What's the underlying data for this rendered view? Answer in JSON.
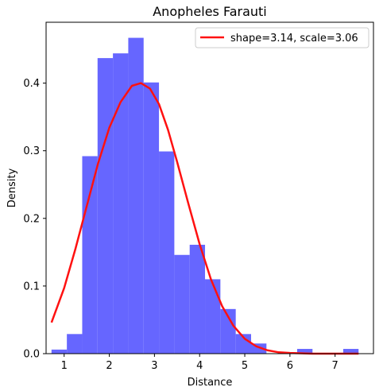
{
  "chart_data": {
    "type": "histogram",
    "title": "Anopheles Farauti",
    "xlabel": "Distance",
    "ylabel": "Density",
    "xlim": [
      0.6,
      7.85
    ],
    "ylim": [
      0,
      0.49
    ],
    "xticks": [
      1,
      2,
      3,
      4,
      5,
      6,
      7
    ],
    "yticks": [
      0.0,
      0.1,
      0.2,
      0.3,
      0.4
    ],
    "grid": false,
    "legend_position": "top-right",
    "bar_color": "#6666ff",
    "line_color": "#ff1111",
    "bins": {
      "edges": [
        0.72,
        1.06,
        1.4,
        1.74,
        2.08,
        2.42,
        2.76,
        3.1,
        3.44,
        3.78,
        4.12,
        4.46,
        4.8,
        5.14,
        5.48,
        5.82,
        6.16,
        6.5,
        6.84,
        7.18,
        7.52
      ],
      "density": [
        0.006,
        0.029,
        0.292,
        0.437,
        0.444,
        0.467,
        0.401,
        0.299,
        0.146,
        0.161,
        0.11,
        0.066,
        0.029,
        0.015,
        0.0,
        0.0,
        0.007,
        0.0,
        0.0,
        0.007
      ]
    },
    "series": [
      {
        "name": "shape=3.14, scale=3.06",
        "type": "line",
        "x": [
          0.72,
          1.0,
          1.25,
          1.5,
          1.75,
          2.0,
          2.25,
          2.5,
          2.7,
          2.9,
          3.1,
          3.3,
          3.5,
          3.75,
          4.0,
          4.25,
          4.5,
          4.75,
          5.0,
          5.25,
          5.5,
          5.75,
          6.0,
          6.5,
          7.0,
          7.52
        ],
        "y": [
          0.046,
          0.097,
          0.155,
          0.218,
          0.281,
          0.334,
          0.372,
          0.396,
          0.4,
          0.392,
          0.369,
          0.331,
          0.284,
          0.222,
          0.162,
          0.11,
          0.07,
          0.041,
          0.022,
          0.011,
          0.005,
          0.002,
          0.001,
          0.0,
          0.0,
          0.0
        ]
      }
    ]
  }
}
